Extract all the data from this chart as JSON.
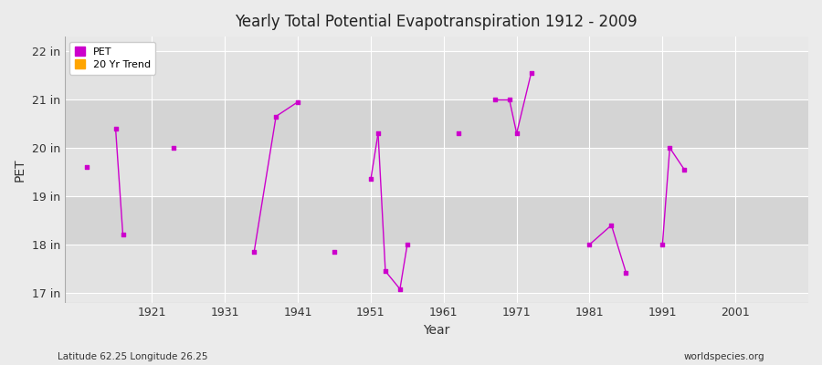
{
  "title": "Yearly Total Potential Evapotranspiration 1912 - 2009",
  "xlabel": "Year",
  "ylabel": "PET",
  "xlim": [
    1909,
    2011
  ],
  "ylim": [
    16.8,
    22.3
  ],
  "yticks": [
    17,
    18,
    19,
    20,
    21,
    22
  ],
  "ytick_labels": [
    "17 in",
    "18 in",
    "19 in",
    "20 in",
    "21 in",
    "22 in"
  ],
  "xticks": [
    1921,
    1931,
    1941,
    1951,
    1961,
    1971,
    1981,
    1991,
    2001
  ],
  "background_color": "#ebebeb",
  "plot_bg_color": "#e8e8e8",
  "band_colors": [
    "#e0e0e0",
    "#d8d8d8"
  ],
  "grid_color": "#ffffff",
  "pet_color": "#cc00cc",
  "trend_color": "#ffa500",
  "pet_data": [
    [
      1912,
      19.6
    ],
    [
      1916,
      20.4
    ],
    [
      1917,
      18.2
    ],
    [
      1924,
      20.0
    ],
    [
      1935,
      17.85
    ],
    [
      1938,
      20.65
    ],
    [
      1941,
      20.95
    ],
    [
      1946,
      17.85
    ],
    [
      1951,
      19.35
    ],
    [
      1952,
      20.3
    ],
    [
      1953,
      17.45
    ],
    [
      1955,
      17.08
    ],
    [
      1956,
      18.0
    ],
    [
      1963,
      20.3
    ],
    [
      1968,
      21.0
    ],
    [
      1970,
      21.0
    ],
    [
      1971,
      20.3
    ],
    [
      1973,
      21.55
    ],
    [
      1981,
      18.0
    ],
    [
      1984,
      18.4
    ],
    [
      1986,
      17.42
    ],
    [
      1991,
      18.0
    ],
    [
      1992,
      20.0
    ],
    [
      1994,
      19.55
    ]
  ],
  "footer_left": "Latitude 62.25 Longitude 26.25",
  "footer_right": "worldspecies.org"
}
